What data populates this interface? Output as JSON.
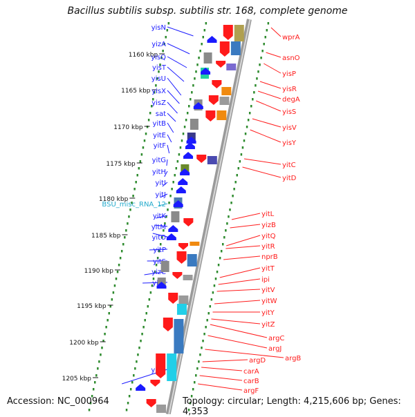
{
  "title": "Bacillus subtilis subsp. subtilis str. 168, complete genome",
  "footer": {
    "accession": "Accession: NC_000964",
    "topology": "Topology: circular; Length: 4,215,606 bp; Genes: 4,353"
  },
  "colors": {
    "forward_gene": "#1a1aff",
    "reverse_gene": "#ff1a1a",
    "misc_rna": "#22aacc",
    "backbone": "#888888",
    "track_dots": "#2e8b2e"
  },
  "scale_ticks": [
    "1160 kbp",
    "1165 kbp",
    "1170 kbp",
    "1175 kbp",
    "1180 kbp",
    "1185 kbp",
    "1190 kbp",
    "1195 kbp",
    "1200 kbp",
    "1205 kbp"
  ],
  "forward_genes": [
    "yisN",
    "yizA",
    "yisQ",
    "yisT",
    "yisU",
    "yisX",
    "yisZ",
    "sat",
    "yitB",
    "yitE",
    "yitF",
    "yitG",
    "yitH",
    "yitI",
    "yitJ",
    "BSU_misc_RNA_12",
    "yitK",
    "yitM",
    "yitO",
    "yitP",
    "yitS",
    "yizC",
    "yitU",
    "yjzD"
  ],
  "reverse_genes": [
    "wprA",
    "asnO",
    "yisP",
    "yisR",
    "degA",
    "yisS",
    "yisV",
    "yisY",
    "yitC",
    "yitD",
    "yitL",
    "yizB",
    "yitQ",
    "yitR",
    "nprB",
    "yitT",
    "ipi",
    "yitV",
    "yitW",
    "yitY",
    "yitZ",
    "argC",
    "argJ",
    "argB",
    "argD",
    "carA",
    "carB",
    "argF"
  ]
}
